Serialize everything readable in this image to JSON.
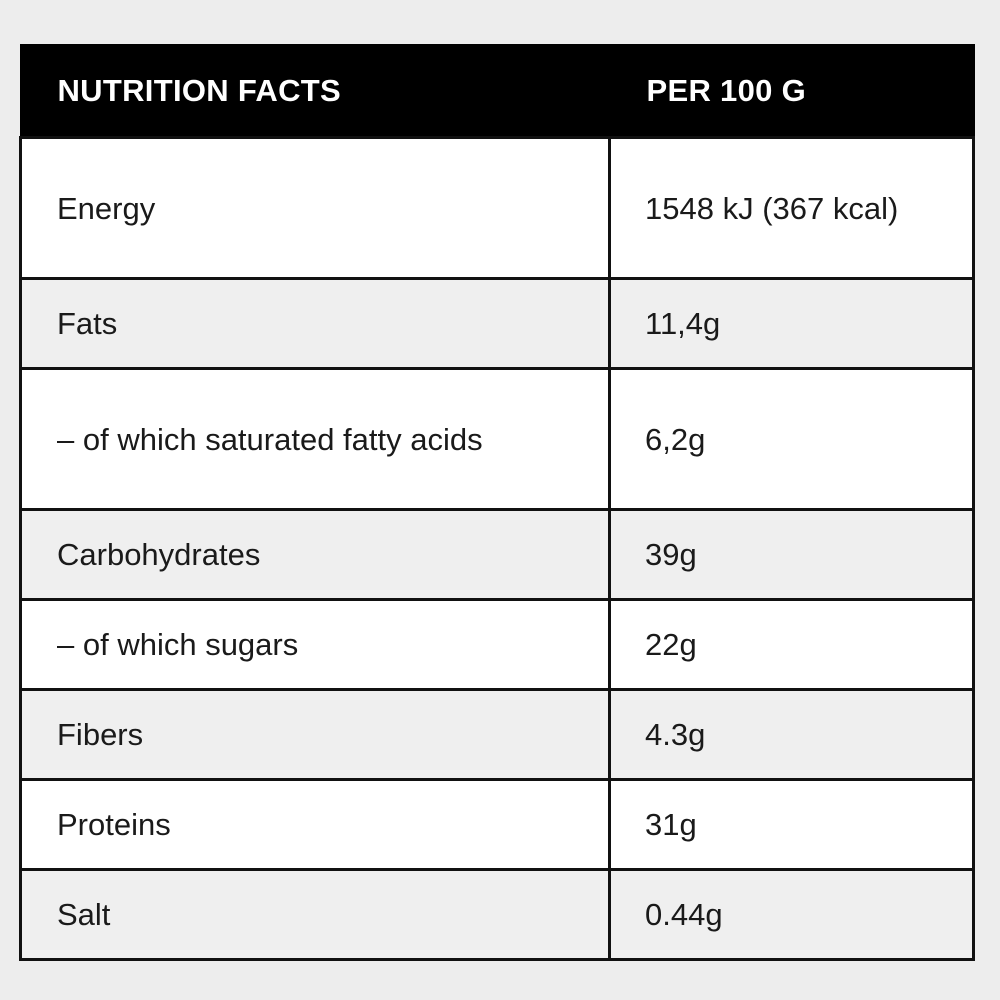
{
  "header": {
    "left": "NUTRITION FACTS",
    "right": "PER 100 G"
  },
  "rows": [
    {
      "name": "Energy",
      "value": "1548 kJ (367 kcal)"
    },
    {
      "name": "Fats",
      "value": "11,4g"
    },
    {
      "name": "– of which saturated fatty acids",
      "value": "6,2g"
    },
    {
      "name": "Carbohydrates",
      "value": "39g"
    },
    {
      "name": "– of which sugars",
      "value": "22g"
    },
    {
      "name": "Fibers",
      "value": "4.3g"
    },
    {
      "name": "Proteins",
      "value": "31g"
    },
    {
      "name": "Salt",
      "value": "0.44g"
    }
  ]
}
